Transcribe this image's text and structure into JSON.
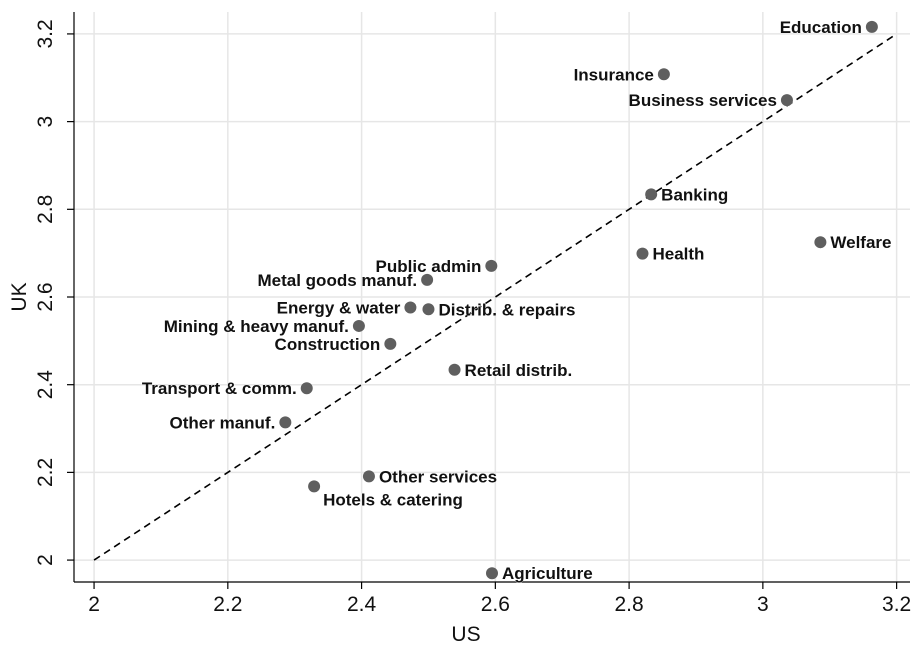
{
  "chart_data": {
    "type": "scatter",
    "title": "",
    "xlabel": "US",
    "ylabel": "UK",
    "xlim": [
      1.97,
      3.22
    ],
    "ylim": [
      1.95,
      3.25
    ],
    "xticks": [
      "2",
      "2.2",
      "2.4",
      "2.6",
      "2.8",
      "3",
      "3.2"
    ],
    "yticks": [
      "2",
      "2.2",
      "2.4",
      "2.6",
      "2.8",
      "3",
      "3.2"
    ],
    "grid": true,
    "reference_line": {
      "style": "dashed",
      "x": [
        2.0,
        3.2
      ],
      "y": [
        2.0,
        3.2
      ]
    },
    "colors": {
      "marker": "#5f5f5f",
      "grid": "#e6e6e6",
      "axis": "#000000"
    },
    "points": [
      {
        "label": "Education",
        "x": 3.163,
        "y": 3.216,
        "label_pos": "left"
      },
      {
        "label": "Insurance",
        "x": 2.852,
        "y": 3.108,
        "label_pos": "left"
      },
      {
        "label": "Business services",
        "x": 3.036,
        "y": 3.049,
        "label_pos": "left"
      },
      {
        "label": "Banking",
        "x": 2.833,
        "y": 2.834,
        "label_pos": "right"
      },
      {
        "label": "Welfare",
        "x": 3.086,
        "y": 2.725,
        "label_pos": "right"
      },
      {
        "label": "Health",
        "x": 2.82,
        "y": 2.699,
        "label_pos": "right"
      },
      {
        "label": "Public admin",
        "x": 2.594,
        "y": 2.671,
        "label_pos": "left"
      },
      {
        "label": "Metal goods manuf.",
        "x": 2.498,
        "y": 2.639,
        "label_pos": "left"
      },
      {
        "label": "Energy & water",
        "x": 2.473,
        "y": 2.576,
        "label_pos": "left"
      },
      {
        "label": "Distrib. & repairs",
        "x": 2.5,
        "y": 2.572,
        "label_pos": "right"
      },
      {
        "label": "Mining & heavy manuf.",
        "x": 2.396,
        "y": 2.534,
        "label_pos": "left"
      },
      {
        "label": "Construction",
        "x": 2.443,
        "y": 2.493,
        "label_pos": "left"
      },
      {
        "label": "Retail distrib.",
        "x": 2.539,
        "y": 2.434,
        "label_pos": "right"
      },
      {
        "label": "Transport & comm.",
        "x": 2.318,
        "y": 2.392,
        "label_pos": "left"
      },
      {
        "label": "Other manuf.",
        "x": 2.286,
        "y": 2.314,
        "label_pos": "left"
      },
      {
        "label": "Other services",
        "x": 2.411,
        "y": 2.191,
        "label_pos": "right"
      },
      {
        "label": "Hotels & catering",
        "x": 2.329,
        "y": 2.168,
        "label_pos": "below-right"
      },
      {
        "label": "Agriculture",
        "x": 2.595,
        "y": 1.97,
        "label_pos": "right"
      }
    ]
  }
}
